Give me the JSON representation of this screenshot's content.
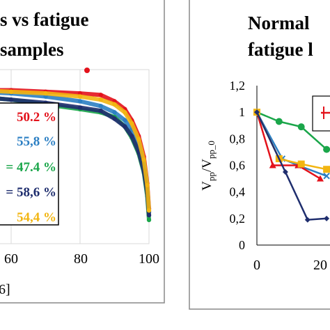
{
  "chart_data": [
    {
      "type": "scatter",
      "title_lines": [
        "s vs fatigue",
        "samples"
      ],
      "xlim": [
        40,
        100
      ],
      "ylim": [
        0,
        1.1
      ],
      "xticks": [
        "60",
        "80",
        "100"
      ],
      "xlabel_fragment": "6]",
      "grid": true,
      "legend_placement": "left-center",
      "legend": [
        {
          "label": "50.2 %",
          "color": "#e3121b"
        },
        {
          "label": "55,8 %",
          "color": "#2c7fc3"
        },
        {
          "label": "= 47.4 %",
          "color": "#1aa64a"
        },
        {
          "label": "= 58,6 %",
          "color": "#1f2e6e"
        },
        {
          "label": "54,4 %",
          "color": "#f2b511"
        }
      ],
      "series": [
        {
          "color": "#e3121b",
          "x": [
            40,
            50,
            60,
            70,
            80,
            86,
            90,
            93,
            95,
            97,
            98.5,
            99.5,
            100
          ],
          "y": [
            0.96,
            0.97,
            0.97,
            0.96,
            0.95,
            0.94,
            0.9,
            0.85,
            0.78,
            0.68,
            0.55,
            0.38,
            0.22
          ]
        },
        {
          "color": "#2c7fc3",
          "x": [
            40,
            50,
            60,
            70,
            80,
            86,
            90,
            93,
            95,
            97,
            98.5,
            99.5,
            100
          ],
          "y": [
            0.95,
            0.96,
            0.95,
            0.93,
            0.9,
            0.87,
            0.83,
            0.78,
            0.72,
            0.63,
            0.5,
            0.35,
            0.2
          ]
        },
        {
          "color": "#1aa64a",
          "x": [
            40,
            50,
            60,
            70,
            80,
            86,
            90,
            93,
            95,
            97,
            98.5,
            99.5,
            100
          ],
          "y": [
            0.93,
            0.93,
            0.91,
            0.88,
            0.85,
            0.83,
            0.8,
            0.74,
            0.67,
            0.57,
            0.45,
            0.3,
            0.15
          ]
        },
        {
          "color": "#1f2e6e",
          "x": [
            40,
            50,
            60,
            70,
            80,
            86,
            90,
            93,
            95,
            97,
            98.5,
            99.5,
            100
          ],
          "y": [
            0.94,
            0.93,
            0.91,
            0.89,
            0.86,
            0.84,
            0.79,
            0.74,
            0.68,
            0.58,
            0.46,
            0.32,
            0.18
          ]
        },
        {
          "color": "#f2b511",
          "x": [
            40,
            50,
            60,
            70,
            80,
            86,
            90,
            93,
            95,
            97,
            98.5,
            99.5,
            100
          ],
          "y": [
            0.96,
            0.97,
            0.96,
            0.95,
            0.93,
            0.91,
            0.88,
            0.83,
            0.76,
            0.66,
            0.53,
            0.37,
            0.21
          ]
        }
      ]
    },
    {
      "type": "line",
      "title_lines": [
        "Normal",
        "fatigue l"
      ],
      "ylabel": "Vpp/Vpp_0",
      "ylim": [
        0,
        1.2
      ],
      "yticks": [
        "0",
        "0,2",
        "0,4",
        "0,6",
        "0,8",
        "1",
        "1,2"
      ],
      "xticks": [
        "0",
        "20"
      ],
      "xlim": [
        0,
        55
      ],
      "grid": false,
      "legend_swatch_color": "#e3121b",
      "series": [
        {
          "color": "#1aa64a",
          "marker": "circle",
          "x": [
            0,
            7,
            14,
            22
          ],
          "y": [
            1,
            0.93,
            0.89,
            0.72
          ]
        },
        {
          "color": "#2c7fc3",
          "marker": "x",
          "x": [
            0,
            8,
            13,
            22
          ],
          "y": [
            1,
            0.65,
            0.6,
            0.52
          ]
        },
        {
          "color": "#e3121b",
          "marker": "triangle",
          "x": [
            0,
            5,
            13,
            20
          ],
          "y": [
            1,
            0.6,
            0.6,
            0.5
          ]
        },
        {
          "color": "#f2b511",
          "marker": "square",
          "x": [
            0,
            7,
            14,
            22
          ],
          "y": [
            1,
            0.65,
            0.61,
            0.57
          ]
        },
        {
          "color": "#1f2e6e",
          "marker": "diamond",
          "x": [
            0,
            9,
            16,
            22
          ],
          "y": [
            1,
            0.55,
            0.19,
            0.2
          ]
        }
      ]
    }
  ]
}
